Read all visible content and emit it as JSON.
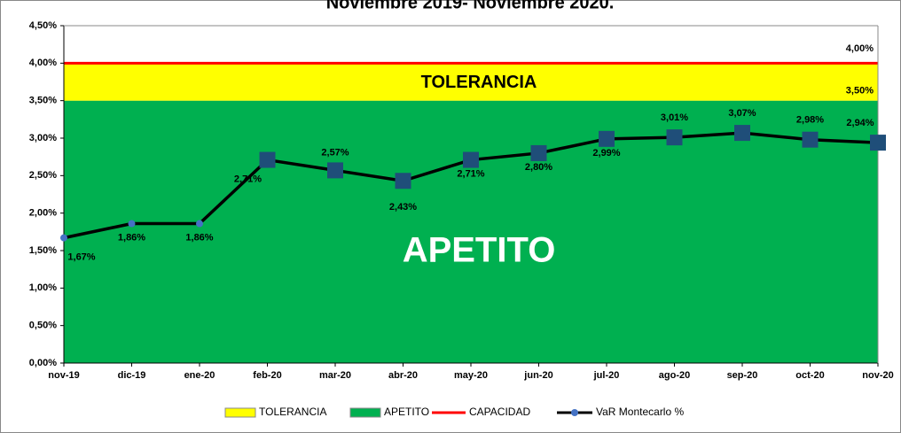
{
  "chart_data": {
    "type": "line",
    "title": "Noviembre 2019- Noviembre 2020.",
    "categories": [
      "nov-19",
      "dic-19",
      "ene-20",
      "feb-20",
      "mar-20",
      "abr-20",
      "may-20",
      "jun-20",
      "jul-20",
      "ago-20",
      "sep-20",
      "oct-20",
      "nov-20"
    ],
    "ylim": [
      0,
      4.5
    ],
    "yticks": [
      {
        "value": 0,
        "label": "0,00%"
      },
      {
        "value": 0.5,
        "label": "0,50%"
      },
      {
        "value": 1,
        "label": "1,00%"
      },
      {
        "value": 1.5,
        "label": "1,50%"
      },
      {
        "value": 2,
        "label": "2,00%"
      },
      {
        "value": 2.5,
        "label": "2,50%"
      },
      {
        "value": 3,
        "label": "3,00%"
      },
      {
        "value": 3.5,
        "label": "3,50%"
      },
      {
        "value": 4,
        "label": "4,00%"
      },
      {
        "value": 4.5,
        "label": "4,50%"
      }
    ],
    "series": [
      {
        "name": "TOLERANCIA",
        "type": "area",
        "color": "#ffff00",
        "value": 0.5
      },
      {
        "name": "APETITO",
        "type": "area",
        "color": "#00b050",
        "value": 3.5,
        "value_label": "3,50%"
      },
      {
        "name": "CAPACIDAD",
        "type": "line",
        "color": "#ff0000",
        "value": 4.0,
        "value_label": "4,00%"
      },
      {
        "name": "VaR Montecarlo %",
        "type": "line",
        "color": "#000000",
        "marker_color": "#1f4e79",
        "values": [
          1.67,
          1.86,
          1.86,
          2.71,
          2.57,
          2.43,
          2.71,
          2.8,
          2.99,
          3.01,
          3.07,
          2.98,
          2.94
        ],
        "value_labels": [
          "1,67%",
          "1,86%",
          "1,86%",
          "2,71%",
          "2,57%",
          "2,43%",
          "2,71%",
          "2,80%",
          "2,99%",
          "3,01%",
          "3,07%",
          "2,98%",
          "2,94%"
        ]
      }
    ]
  }
}
